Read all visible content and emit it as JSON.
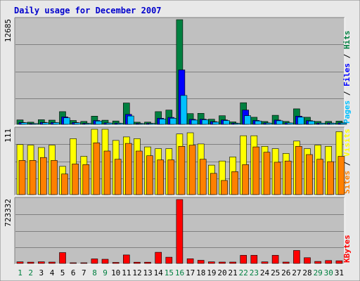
{
  "chart_data": {
    "type": "bar",
    "title": "Daily usage for December 2007",
    "days": [
      "1",
      "2",
      "3",
      "4",
      "5",
      "6",
      "7",
      "8",
      "9",
      "10",
      "11",
      "12",
      "13",
      "14",
      "15",
      "16",
      "17",
      "18",
      "19",
      "20",
      "21",
      "22",
      "23",
      "24",
      "25",
      "26",
      "27",
      "28",
      "29",
      "30",
      "31"
    ],
    "weekend_days": [
      "1",
      "2",
      "8",
      "9",
      "15",
      "16",
      "22",
      "23",
      "29",
      "30"
    ],
    "colors": {
      "hits": "#008040",
      "files": "#0000ff",
      "pages": "#00c0ff",
      "visits": "#ffff00",
      "sites": "#ff8000",
      "kbytes": "#ff0000",
      "weekday_label": "#000000",
      "weekend_label": "#008040",
      "panel": "#c0c0c0",
      "frame": "#e8e8e8",
      "title": "#0000cc"
    },
    "panels": [
      {
        "id": "hits",
        "max_label": "12685",
        "ymax": 12685,
        "side_labels": [
          {
            "text": "Pages",
            "color": "#00c0ff"
          },
          {
            "text": " / ",
            "color": "#000000"
          },
          {
            "text": "Files",
            "color": "#0000ff"
          },
          {
            "text": " / ",
            "color": "#000000"
          },
          {
            "text": "Hits",
            "color": "#008040"
          }
        ],
        "series": [
          {
            "key": "hits",
            "name": "Hits",
            "color": "#008040",
            "values": [
              540,
              260,
              560,
              510,
              1540,
              470,
              360,
              1000,
              500,
              410,
              2590,
              260,
              270,
              1540,
              1730,
              12685,
              1300,
              1340,
              620,
              1050,
              300,
              2620,
              860,
              350,
              1100,
              360,
              1880,
              860,
              350,
              360,
              390
            ]
          },
          {
            "key": "files",
            "name": "Files",
            "color": "#0000ff",
            "values": [
              220,
              100,
              240,
              230,
              900,
              220,
              130,
              470,
              180,
              150,
              1210,
              120,
              130,
              740,
              840,
              6600,
              610,
              630,
              330,
              540,
              150,
              1740,
              480,
              180,
              520,
              190,
              1000,
              450,
              150,
              160,
              180
            ]
          },
          {
            "key": "pages",
            "name": "Pages",
            "color": "#00c0ff",
            "values": [
              200,
              90,
              200,
              210,
              790,
              190,
              110,
              400,
              160,
              130,
              1010,
              90,
              110,
              650,
              740,
              3500,
              520,
              550,
              270,
              460,
              120,
              1050,
              410,
              150,
              430,
              170,
              870,
              390,
              140,
              140,
              160
            ]
          }
        ]
      },
      {
        "id": "visits",
        "max_label": "111",
        "ymax": 111,
        "side_labels": [
          {
            "text": "Sites",
            "color": "#ff8000"
          },
          {
            "text": " / ",
            "color": "#000000"
          },
          {
            "text": "Visits",
            "color": "#ffff00"
          }
        ],
        "series": [
          {
            "key": "visits",
            "name": "Visits",
            "color": "#ffff00",
            "values": [
              85,
              84,
              80,
              84,
              48,
              95,
              65,
              111,
              111,
              92,
              98,
              95,
              81,
              78,
              78,
              103,
              105,
              86,
              50,
              57,
              64,
              100,
              100,
              82,
              78,
              70,
              91,
              78,
              84,
              82,
              107
            ]
          },
          {
            "key": "sites",
            "name": "Sites",
            "color": "#ff8000",
            "values": [
              58,
              58,
              63,
              58,
              35,
              52,
              51,
              88,
              74,
              60,
              87,
              74,
              66,
              59,
              59,
              82,
              84,
              60,
              36,
              24,
              39,
              51,
              81,
              72,
              55,
              57,
              82,
              68,
              60,
              56,
              65
            ]
          }
        ]
      },
      {
        "id": "kbytes",
        "max_label": "723332",
        "ymax": 723332,
        "side_labels": [
          {
            "text": "KBytes",
            "color": "#ff0000"
          }
        ],
        "series": [
          {
            "key": "kbytes",
            "name": "KBytes",
            "color": "#ff0000",
            "values": [
              18000,
              15000,
              19000,
              16000,
              123000,
              8000,
              5000,
              52000,
              48000,
              12000,
              96000,
              14000,
              14000,
              126000,
              71000,
              723332,
              53000,
              36000,
              18000,
              16000,
              16000,
              92000,
              92000,
              18000,
              92000,
              16000,
              147000,
              65000,
              23000,
              33000,
              30000
            ]
          }
        ]
      }
    ]
  }
}
